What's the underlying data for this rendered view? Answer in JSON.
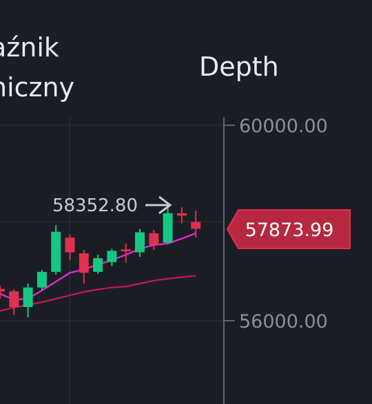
{
  "tabs": {
    "indicator_lines": [
      "aźnik",
      "niczny"
    ],
    "depth": "Depth"
  },
  "chart_data": {
    "type": "candlestick",
    "y_ticks": [
      "60000.00",
      "56000.00"
    ],
    "ylim": [
      55500,
      60300
    ],
    "high_annotation": "58352.80",
    "current_price": "57873.99",
    "candles": [
      {
        "o": 56650,
        "c": 56600,
        "h": 56720,
        "l": 56450
      },
      {
        "o": 56600,
        "c": 56280,
        "h": 56640,
        "l": 56120
      },
      {
        "o": 56280,
        "c": 56680,
        "h": 56760,
        "l": 56070
      },
      {
        "o": 56680,
        "c": 57000,
        "h": 57040,
        "l": 56620
      },
      {
        "o": 57000,
        "c": 57820,
        "h": 57960,
        "l": 56940
      },
      {
        "o": 57700,
        "c": 57400,
        "h": 57760,
        "l": 57240
      },
      {
        "o": 57380,
        "c": 56980,
        "h": 57450,
        "l": 56760
      },
      {
        "o": 57000,
        "c": 57280,
        "h": 57350,
        "l": 56960
      },
      {
        "o": 57200,
        "c": 57430,
        "h": 57470,
        "l": 57120
      },
      {
        "o": 57460,
        "c": 57420,
        "h": 57580,
        "l": 57190
      },
      {
        "o": 57400,
        "c": 57810,
        "h": 57880,
        "l": 57310
      },
      {
        "o": 57790,
        "c": 57550,
        "h": 57860,
        "l": 57450
      },
      {
        "o": 57600,
        "c": 58200,
        "h": 58352.8,
        "l": 57580
      },
      {
        "o": 58200,
        "c": 58150,
        "h": 58320,
        "l": 57990
      },
      {
        "o": 58020,
        "c": 57880,
        "h": 58250,
        "l": 57700
      }
    ],
    "ma_fast": [
      56550,
      56430,
      56450,
      56620,
      56800,
      56980,
      57050,
      57150,
      57240,
      57350,
      57470,
      57550,
      57580,
      57680,
      57790
    ],
    "ma_slow": [
      56200,
      56270,
      56320,
      56380,
      56450,
      56520,
      56590,
      56640,
      56680,
      56700,
      56760,
      56820,
      56860,
      56890,
      56920
    ],
    "colors": {
      "up": "#16c784",
      "down": "#e0304f",
      "ma_fast": "#e128d6",
      "ma_slow": "#c7165f",
      "grid": "#2a2d35",
      "axis": "#5f6370",
      "tick_text": "#8b8f9a",
      "price_tag_bg": "#b6283f",
      "price_tag_border": "#e0304f"
    }
  }
}
